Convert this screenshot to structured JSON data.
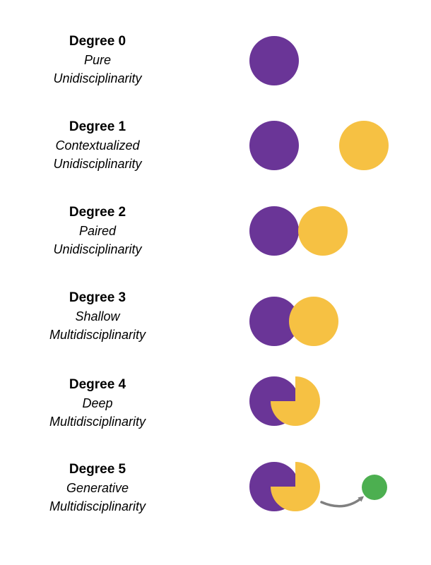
{
  "colors": {
    "purple": "#6a3597",
    "gold": "#f6c143",
    "green": "#4caf50",
    "arrow": "#808080"
  },
  "degrees": [
    {
      "title": "Degree 0",
      "line1": "Pure",
      "line2": "Unidisciplinarity"
    },
    {
      "title": "Degree 1",
      "line1": "Contextualized",
      "line2": "Unidisciplinarity"
    },
    {
      "title": "Degree 2",
      "line1": "Paired",
      "line2": "Unidisciplinarity"
    },
    {
      "title": "Degree 3",
      "line1": "Shallow",
      "line2": "Multidisciplinarity"
    },
    {
      "title": "Degree 4",
      "line1": "Deep",
      "line2": "Multidisciplinarity"
    },
    {
      "title": "Degree 5",
      "line1": "Generative",
      "line2": "Multidisciplinarity"
    }
  ]
}
